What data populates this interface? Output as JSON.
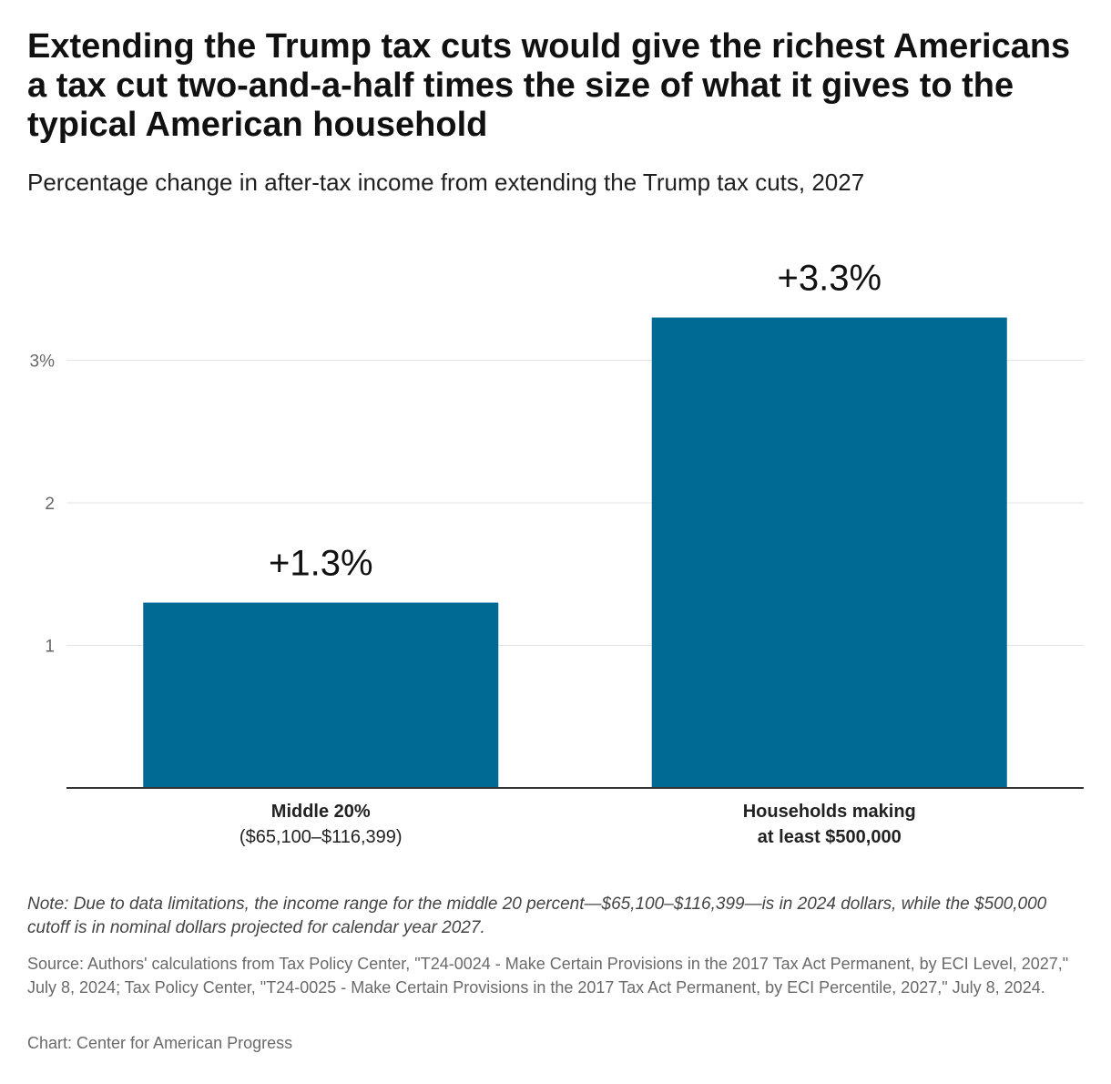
{
  "header": {
    "title": "Extending the Trump tax cuts would give the richest Americans a tax cut two-and-a-half times the size of what it gives to the typical American household",
    "subtitle": "Percentage change in after-tax income from extending the Trump tax cuts, 2027"
  },
  "chart_data": {
    "type": "bar",
    "title": "Extending the Trump tax cuts would give the richest Americans a tax cut two-and-a-half times the size of what it gives to the typical American household",
    "subtitle": "Percentage change in after-tax income from extending the Trump tax cuts, 2027",
    "xlabel": "",
    "ylabel": "",
    "ylim": [
      0,
      3.3
    ],
    "grid": true,
    "bar_color": "#006994",
    "yticks": [
      {
        "value": 1,
        "label": "1"
      },
      {
        "value": 2,
        "label": "2"
      },
      {
        "value": 3,
        "label": "3%"
      }
    ],
    "categories": [
      {
        "line1": "Middle 20%",
        "line2": "($65,100–$116,399)",
        "line2_bold": false
      },
      {
        "line1": "Households making",
        "line2": "at least $500,000",
        "line2_bold": true
      }
    ],
    "values": [
      1.3,
      3.3
    ],
    "data_labels": [
      "+1.3%",
      "+3.3%"
    ]
  },
  "footer": {
    "note": "Note: Due to data limitations, the income range for the middle 20 percent—$65,100–$116,399—is in 2024 dollars, while the $500,000 cutoff is in nominal dollars projected for calendar year 2027.",
    "source": "Source: Authors' calculations from Tax Policy Center, \"T24-0024 - Make Certain Provisions in the 2017 Tax Act Permanent, by ECI Level, 2027,\" July 8, 2024; Tax Policy Center, \"T24-0025 - Make Certain Provisions in the 2017 Tax Act Permanent, by ECI Percentile, 2027,\" July 8, 2024.",
    "credit": "Chart: Center for American Progress"
  }
}
